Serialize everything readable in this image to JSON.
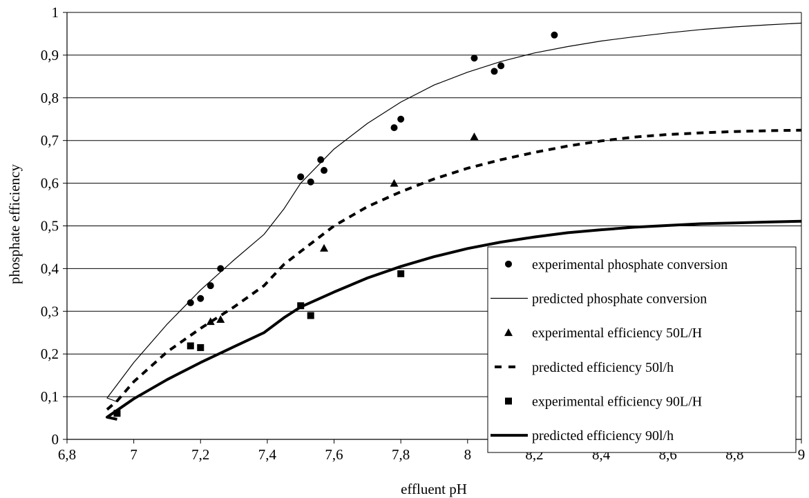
{
  "chart_data": {
    "type": "scatter",
    "xlabel": "effluent pH",
    "ylabel": "phosphate efficiency",
    "xlim": [
      6.8,
      9
    ],
    "ylim": [
      0,
      1
    ],
    "x_ticks": [
      "6,8",
      "7",
      "7,2",
      "7,4",
      "7,6",
      "7,8",
      "8",
      "8,2",
      "8,4",
      "8,6",
      "8,8",
      "9"
    ],
    "y_ticks": [
      "0",
      "0,1",
      "0,2",
      "0,3",
      "0,4",
      "0,5",
      "0,6",
      "0,7",
      "0,8",
      "0,9",
      "1"
    ],
    "grid": "horizontal",
    "legend_position": "bottom-right",
    "series": [
      {
        "name": "experimental phosphate conversion",
        "kind": "markers",
        "marker": "circle",
        "color": "#000000",
        "points": [
          [
            7.17,
            0.32
          ],
          [
            7.2,
            0.33
          ],
          [
            7.23,
            0.36
          ],
          [
            7.26,
            0.4
          ],
          [
            7.5,
            0.615
          ],
          [
            7.53,
            0.603
          ],
          [
            7.56,
            0.655
          ],
          [
            7.57,
            0.63
          ],
          [
            7.78,
            0.73
          ],
          [
            7.8,
            0.75
          ],
          [
            8.02,
            0.893
          ],
          [
            8.08,
            0.862
          ],
          [
            8.1,
            0.875
          ],
          [
            8.26,
            0.947
          ]
        ]
      },
      {
        "name": "predicted phosphate conversion",
        "kind": "line",
        "style": "thin",
        "color": "#000000",
        "points": [
          [
            6.95,
            0.088
          ],
          [
            6.92,
            0.097
          ],
          [
            7.0,
            0.18
          ],
          [
            7.1,
            0.27
          ],
          [
            7.2,
            0.35
          ],
          [
            7.3,
            0.42
          ],
          [
            7.39,
            0.48
          ],
          [
            7.45,
            0.54
          ],
          [
            7.5,
            0.6
          ],
          [
            7.6,
            0.68
          ],
          [
            7.7,
            0.74
          ],
          [
            7.8,
            0.79
          ],
          [
            7.9,
            0.83
          ],
          [
            8.0,
            0.86
          ],
          [
            8.1,
            0.885
          ],
          [
            8.2,
            0.905
          ],
          [
            8.3,
            0.92
          ],
          [
            8.4,
            0.933
          ],
          [
            8.5,
            0.943
          ],
          [
            8.6,
            0.952
          ],
          [
            8.7,
            0.96
          ],
          [
            8.8,
            0.966
          ],
          [
            8.9,
            0.971
          ],
          [
            9.0,
            0.975
          ]
        ]
      },
      {
        "name": "experimental efficiency 50L/H",
        "kind": "markers",
        "marker": "triangle",
        "color": "#000000",
        "points": [
          [
            7.23,
            0.276
          ],
          [
            7.26,
            0.281
          ],
          [
            7.57,
            0.448
          ],
          [
            7.78,
            0.6
          ],
          [
            8.02,
            0.709
          ]
        ]
      },
      {
        "name": "predicted efficiency 50l/h",
        "kind": "line",
        "style": "dashed",
        "color": "#000000",
        "points": [
          [
            6.92,
            0.07
          ],
          [
            6.95,
            0.09
          ],
          [
            7.0,
            0.135
          ],
          [
            7.1,
            0.205
          ],
          [
            7.2,
            0.26
          ],
          [
            7.3,
            0.31
          ],
          [
            7.39,
            0.36
          ],
          [
            7.45,
            0.41
          ],
          [
            7.5,
            0.44
          ],
          [
            7.6,
            0.5
          ],
          [
            7.7,
            0.545
          ],
          [
            7.8,
            0.58
          ],
          [
            7.9,
            0.61
          ],
          [
            8.0,
            0.635
          ],
          [
            8.1,
            0.655
          ],
          [
            8.2,
            0.672
          ],
          [
            8.3,
            0.687
          ],
          [
            8.4,
            0.699
          ],
          [
            8.5,
            0.708
          ],
          [
            8.6,
            0.714
          ],
          [
            8.7,
            0.718
          ],
          [
            8.8,
            0.721
          ],
          [
            8.9,
            0.723
          ],
          [
            9.0,
            0.724
          ]
        ]
      },
      {
        "name": "experimental efficiency 90L/H",
        "kind": "markers",
        "marker": "square",
        "color": "#000000",
        "points": [
          [
            6.95,
            0.061
          ],
          [
            7.17,
            0.219
          ],
          [
            7.2,
            0.215
          ],
          [
            7.5,
            0.313
          ],
          [
            7.53,
            0.29
          ],
          [
            7.8,
            0.388
          ]
        ]
      },
      {
        "name": "predicted efficiency 90l/h",
        "kind": "line",
        "style": "thick",
        "color": "#000000",
        "points": [
          [
            6.95,
            0.047
          ],
          [
            6.92,
            0.052
          ],
          [
            7.0,
            0.095
          ],
          [
            7.1,
            0.14
          ],
          [
            7.2,
            0.18
          ],
          [
            7.3,
            0.217
          ],
          [
            7.39,
            0.25
          ],
          [
            7.45,
            0.285
          ],
          [
            7.5,
            0.31
          ],
          [
            7.6,
            0.345
          ],
          [
            7.7,
            0.378
          ],
          [
            7.8,
            0.405
          ],
          [
            7.9,
            0.428
          ],
          [
            8.0,
            0.447
          ],
          [
            8.1,
            0.462
          ],
          [
            8.2,
            0.474
          ],
          [
            8.3,
            0.484
          ],
          [
            8.4,
            0.491
          ],
          [
            8.5,
            0.497
          ],
          [
            8.6,
            0.501
          ],
          [
            8.7,
            0.505
          ],
          [
            8.8,
            0.507
          ],
          [
            8.9,
            0.509
          ],
          [
            9.0,
            0.511
          ]
        ]
      }
    ]
  }
}
